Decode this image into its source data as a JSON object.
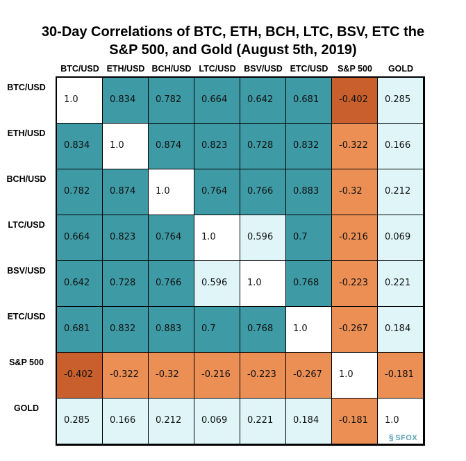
{
  "title_line1": "30-Day Correlations of BTC, ETH, BCH, LTC, BSV, ETC the",
  "title_line2": "S&P 500, and Gold (August 5th, 2019)",
  "logo_text": "SFOX",
  "colors": {
    "high": "#3e9aa5",
    "low": "#dff5f8",
    "neg": "#eb8f55",
    "neg_strong": "#c95f2d",
    "diag": "#ffffff"
  },
  "chart_data": {
    "type": "heatmap",
    "title": "30-Day Correlations of BTC, ETH, BCH, LTC, BSV, ETC the S&P 500, and Gold (August 5th, 2019)",
    "labels": [
      "BTC/USD",
      "ETH/USD",
      "BCH/USD",
      "LTC/USD",
      "BSV/USD",
      "ETC/USD",
      "S&P 500",
      "GOLD"
    ],
    "matrix": [
      [
        "1.0",
        "0.834",
        "0.782",
        "0.664",
        "0.642",
        "0.681",
        "-0.402",
        "0.285"
      ],
      [
        "0.834",
        "1.0",
        "0.874",
        "0.823",
        "0.728",
        "0.832",
        "-0.322",
        "0.166"
      ],
      [
        "0.782",
        "0.874",
        "1.0",
        "0.764",
        "0.766",
        "0.883",
        "-0.32",
        "0.212"
      ],
      [
        "0.664",
        "0.823",
        "0.764",
        "1.0",
        "0.596",
        "0.7",
        "-0.216",
        "0.069"
      ],
      [
        "0.642",
        "0.728",
        "0.766",
        "0.596",
        "1.0",
        "0.768",
        "-0.223",
        "0.221"
      ],
      [
        "0.681",
        "0.832",
        "0.883",
        "0.7",
        "0.768",
        "1.0",
        "-0.267",
        "0.184"
      ],
      [
        "-0.402",
        "-0.322",
        "-0.32",
        "-0.216",
        "-0.223",
        "-0.267",
        "1.0",
        "-0.181"
      ],
      [
        "0.285",
        "0.166",
        "0.212",
        "0.069",
        "0.221",
        "0.184",
        "-0.181",
        "1.0"
      ]
    ]
  }
}
